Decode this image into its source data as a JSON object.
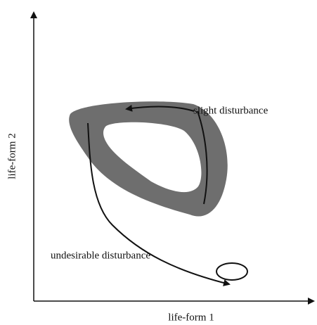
{
  "axes": {
    "x_label": "life-form 1",
    "y_label": "life-form 2"
  },
  "annotations": {
    "slight": "slight disturbance",
    "undesirable": "undesirable disturbance"
  }
}
